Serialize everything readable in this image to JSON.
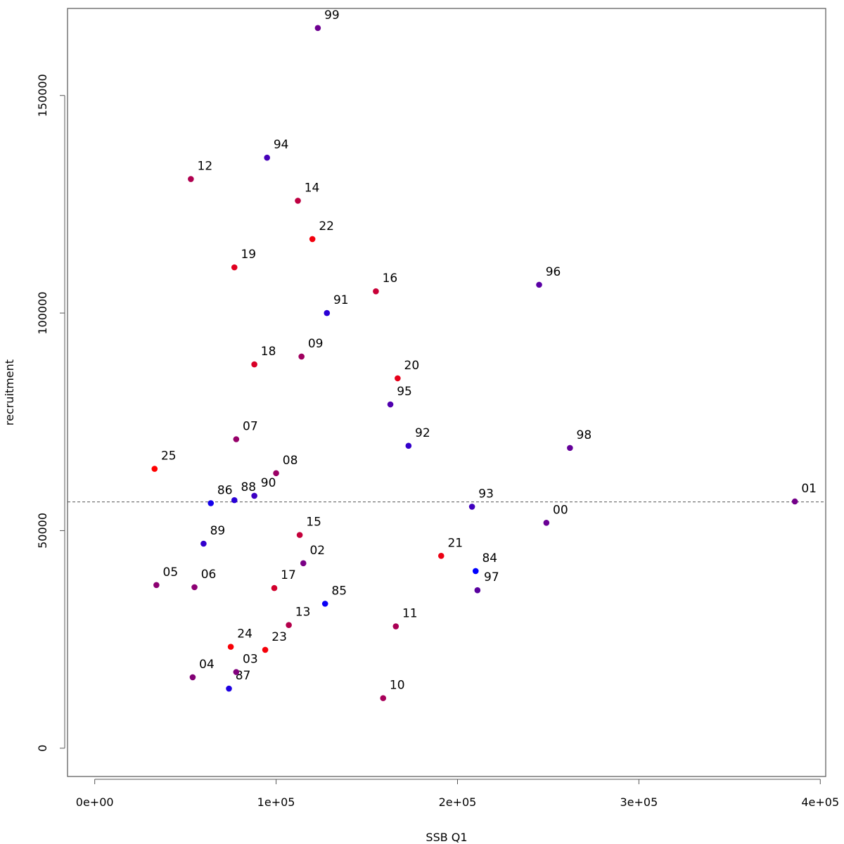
{
  "chart_data": {
    "type": "scatter",
    "title": "",
    "xlabel": "SSB Q1",
    "ylabel": "recruitment",
    "xlim": [
      -15000,
      403000
    ],
    "ylim": [
      -6500,
      170000
    ],
    "x_ticks": [
      0,
      100000,
      200000,
      300000,
      400000
    ],
    "x_tick_labels": [
      "0e+00",
      "1e+05",
      "2e+05",
      "3e+05",
      "4e+05"
    ],
    "y_ticks": [
      0,
      50000,
      100000,
      150000
    ],
    "y_tick_labels": [
      "0",
      "50000",
      "100000",
      "150000"
    ],
    "reference_line": {
      "orientation": "horizontal",
      "y": 56600,
      "style": "dashed"
    },
    "points": [
      {
        "label": "84",
        "x": 210000,
        "y": 40700,
        "color": "#0000ff"
      },
      {
        "label": "85",
        "x": 127000,
        "y": 33200,
        "color": "#0a00f5"
      },
      {
        "label": "86",
        "x": 64000,
        "y": 56300,
        "color": "#1400eb"
      },
      {
        "label": "87",
        "x": 74000,
        "y": 13700,
        "color": "#1e00e1"
      },
      {
        "label": "88",
        "x": 77000,
        "y": 57000,
        "color": "#2800d7"
      },
      {
        "label": "89",
        "x": 60000,
        "y": 47000,
        "color": "#3200cd"
      },
      {
        "label": "90",
        "x": 88000,
        "y": 58000,
        "color": "#3c00c3"
      },
      {
        "label": "91",
        "x": 128000,
        "y": 100000,
        "color": "#2a00d5"
      },
      {
        "label": "92",
        "x": 173000,
        "y": 69500,
        "color": "#3400cb"
      },
      {
        "label": "93",
        "x": 208000,
        "y": 55500,
        "color": "#4000bf"
      },
      {
        "label": "94",
        "x": 95000,
        "y": 135700,
        "color": "#4600b9"
      },
      {
        "label": "95",
        "x": 163000,
        "y": 79000,
        "color": "#5000af"
      },
      {
        "label": "96",
        "x": 245000,
        "y": 106500,
        "color": "#5a00a5"
      },
      {
        "label": "97",
        "x": 211000,
        "y": 36300,
        "color": "#58009f"
      },
      {
        "label": "98",
        "x": 262000,
        "y": 69000,
        "color": "#640099"
      },
      {
        "label": "99",
        "x": 123000,
        "y": 165500,
        "color": "#6e0091"
      },
      {
        "label": "00",
        "x": 249000,
        "y": 51800,
        "color": "#6a0095"
      },
      {
        "label": "01",
        "x": 386000,
        "y": 56700,
        "color": "#740089"
      },
      {
        "label": "02",
        "x": 115000,
        "y": 42500,
        "color": "#7a0085"
      },
      {
        "label": "03",
        "x": 78000,
        "y": 17500,
        "color": "#82007d"
      },
      {
        "label": "04",
        "x": 54000,
        "y": 16300,
        "color": "#820075"
      },
      {
        "label": "05",
        "x": 34000,
        "y": 37500,
        "color": "#8c0071"
      },
      {
        "label": "06",
        "x": 55000,
        "y": 37000,
        "color": "#8c0073"
      },
      {
        "label": "07",
        "x": 78000,
        "y": 71000,
        "color": "#960069"
      },
      {
        "label": "08",
        "x": 100000,
        "y": 63200,
        "color": "#9a0065"
      },
      {
        "label": "09",
        "x": 114000,
        "y": 90000,
        "color": "#a0005f"
      },
      {
        "label": "10",
        "x": 159000,
        "y": 11500,
        "color": "#a8005a"
      },
      {
        "label": "11",
        "x": 166000,
        "y": 28000,
        "color": "#aa0055"
      },
      {
        "label": "12",
        "x": 53000,
        "y": 130800,
        "color": "#b00050"
      },
      {
        "label": "13",
        "x": 107000,
        "y": 28300,
        "color": "#b4004b"
      },
      {
        "label": "14",
        "x": 112000,
        "y": 125800,
        "color": "#be0041"
      },
      {
        "label": "15",
        "x": 113000,
        "y": 49000,
        "color": "#c4003b"
      },
      {
        "label": "16",
        "x": 155000,
        "y": 105000,
        "color": "#c80037"
      },
      {
        "label": "17",
        "x": 99000,
        "y": 36800,
        "color": "#d2002d"
      },
      {
        "label": "18",
        "x": 88000,
        "y": 88200,
        "color": "#d80027"
      },
      {
        "label": "19",
        "x": 77000,
        "y": 110500,
        "color": "#e0001f"
      },
      {
        "label": "20",
        "x": 167000,
        "y": 85000,
        "color": "#e6001a"
      },
      {
        "label": "21",
        "x": 191000,
        "y": 44200,
        "color": "#ec0013"
      },
      {
        "label": "22",
        "x": 120000,
        "y": 117000,
        "color": "#f2000d"
      },
      {
        "label": "23",
        "x": 94000,
        "y": 22600,
        "color": "#f50009"
      },
      {
        "label": "24",
        "x": 75000,
        "y": 23300,
        "color": "#f80006"
      },
      {
        "label": "25",
        "x": 33000,
        "y": 64200,
        "color": "#ff0000"
      }
    ]
  }
}
